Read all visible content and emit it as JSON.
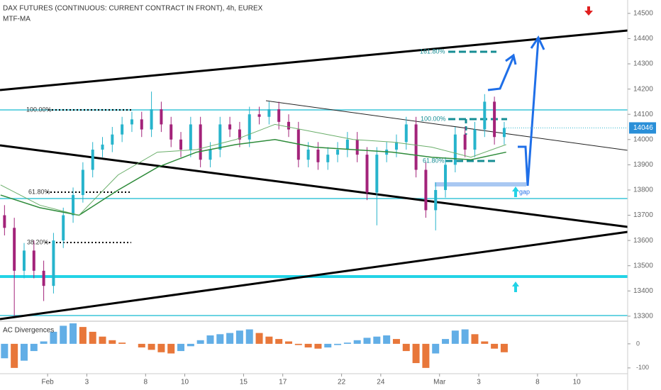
{
  "chart_data": {
    "type": "candlestick",
    "title": "DAX FUTURES (CONTINUOUS: CURRENT CONTRACT IN FRONT), 4h, EUREX",
    "indicator": "MTF-MA",
    "up_color": "#27b4cc",
    "down_color": "#a3237a",
    "x": [
      -2.2,
      -1.7,
      -1.2,
      -0.7,
      -0.2,
      0.3,
      0.8,
      1.3,
      1.8,
      2.3,
      2.8,
      3.3,
      3.8,
      4.3,
      4.8,
      5.3,
      5.8,
      6.3,
      6.8,
      7.3,
      7.8,
      8.3,
      8.8,
      9.3,
      9.8,
      10.3,
      10.8,
      11.3,
      11.8,
      12.3,
      12.8,
      13.3,
      13.8,
      14.3,
      14.8,
      15.3,
      15.8,
      16.3,
      16.8,
      17.3,
      17.8,
      18.3,
      18.8,
      19.3,
      19.8,
      20.3,
      20.8,
      21.3,
      21.8,
      22.3,
      22.8,
      23.3
    ],
    "open": [
      13700,
      13650,
      13480,
      13560,
      13480,
      13420,
      13600,
      13700,
      13780,
      13880,
      13960,
      13980,
      14020,
      14060,
      14080,
      14040,
      14120,
      14060,
      14000,
      13960,
      14060,
      13920,
      13960,
      14060,
      14040,
      14000,
      14100,
      14090,
      14120,
      14070,
      14040,
      13920,
      13960,
      13910,
      13940,
      13960,
      14000,
      13940,
      13790,
      13940,
      13960,
      13990,
      14060,
      13880,
      13720,
      13800,
      13900,
      14020,
      13960,
      14040,
      14150,
      14010
    ],
    "high": [
      13740,
      13690,
      13590,
      13600,
      13520,
      13630,
      13730,
      13810,
      13910,
      13990,
      14010,
      14050,
      14090,
      14110,
      14110,
      14190,
      14150,
      14090,
      14030,
      14090,
      14090,
      13990,
      14090,
      14090,
      14070,
      14130,
      14130,
      14150,
      14150,
      14100,
      14070,
      13990,
      13990,
      13970,
      13990,
      14030,
      14030,
      13970,
      13970,
      13990,
      14020,
      14090,
      14090,
      13910,
      13830,
      13930,
      14050,
      14050,
      14070,
      14180,
      14170,
      14070
    ],
    "low": [
      13620,
      13300,
      13450,
      13450,
      13360,
      13390,
      13570,
      13670,
      13750,
      13850,
      13930,
      13950,
      13990,
      14030,
      14010,
      14010,
      14030,
      13970,
      13930,
      13930,
      13890,
      13890,
      13930,
      14010,
      13970,
      13970,
      14060,
      14060,
      14040,
      14010,
      13890,
      13890,
      13880,
      13880,
      13910,
      13930,
      13910,
      13760,
      13660,
      13910,
      13930,
      13960,
      13850,
      13690,
      13640,
      13770,
      13870,
      13930,
      13930,
      14010,
      13980,
      13980
    ],
    "close": [
      13650,
      13480,
      13560,
      13480,
      13420,
      13600,
      13700,
      13780,
      13880,
      13960,
      13980,
      14020,
      14060,
      14080,
      14040,
      14120,
      14060,
      14000,
      13960,
      14060,
      13920,
      13960,
      14060,
      14040,
      14000,
      14100,
      14090,
      14120,
      14070,
      14040,
      13920,
      13960,
      13910,
      13940,
      13960,
      14000,
      13940,
      13790,
      13940,
      13960,
      13990,
      14060,
      13880,
      13720,
      13800,
      13900,
      14020,
      13960,
      14040,
      14150,
      14010,
      14046
    ],
    "ma_x": [
      -2.4,
      -0.4,
      1.6,
      3.6,
      5.6,
      7.6,
      9.6,
      11.6,
      13.6,
      15.6,
      17.6,
      19.6,
      21.6,
      23.4
    ],
    "ma_slow": [
      13780,
      13730,
      13700,
      13800,
      13890,
      13950,
      13980,
      14000,
      13970,
      13960,
      13950,
      13930,
      13920,
      13950
    ],
    "ma_fast": [
      13820,
      13740,
      13700,
      13860,
      13950,
      13960,
      14000,
      14060,
      14030,
      14000,
      13990,
      13970,
      13930,
      13980
    ],
    "ma_slow_color": "#2e8b3a",
    "ma_fast_color": "#6aae6a",
    "last_price": 14046,
    "xlim": [
      -2.43,
      29.6
    ],
    "ylim": [
      13280,
      14553
    ],
    "yticks": [
      13300,
      13400,
      13500,
      13600,
      13700,
      13800,
      13900,
      14000,
      14100,
      14200,
      14300,
      14400,
      14500
    ],
    "xticks": [
      {
        "value": 0,
        "label": "Feb"
      },
      {
        "value": 2,
        "label": "3"
      },
      {
        "value": 5,
        "label": "8"
      },
      {
        "value": 7,
        "label": "10"
      },
      {
        "value": 10,
        "label": "15"
      },
      {
        "value": 12,
        "label": "17"
      },
      {
        "value": 15,
        "label": "22"
      },
      {
        "value": 17,
        "label": "24"
      },
      {
        "value": 20,
        "label": "Mar"
      },
      {
        "value": 22,
        "label": "3"
      },
      {
        "value": 25,
        "label": "8"
      },
      {
        "value": 27,
        "label": "10"
      }
    ],
    "fib_left": [
      "100.00%",
      "61.80%",
      "38.20%"
    ],
    "fib_right": [
      "161.80%",
      "100.00%",
      "61.80%"
    ],
    "gap_label": "gap",
    "oscillator": {
      "title": "AC Divergences",
      "up_color": "#62aee6",
      "down_color": "#e8773a",
      "values": [
        -60,
        -100,
        -70,
        -30,
        10,
        50,
        75,
        85,
        70,
        50,
        30,
        15,
        5,
        0,
        -15,
        -25,
        -35,
        -40,
        -30,
        -10,
        15,
        35,
        40,
        45,
        55,
        60,
        45,
        30,
        20,
        10,
        -5,
        -15,
        -20,
        -15,
        -5,
        5,
        15,
        25,
        30,
        35,
        20,
        -30,
        -80,
        -100,
        -40,
        20,
        55,
        60,
        40,
        10,
        -20,
        -35
      ],
      "ylim": [
        -124,
        88
      ],
      "yticks": [
        0,
        -100
      ]
    }
  }
}
